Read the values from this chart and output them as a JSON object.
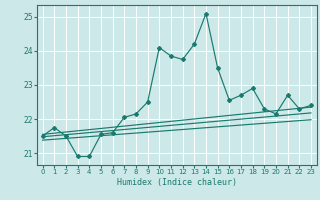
{
  "xlabel": "Humidex (Indice chaleur)",
  "bg_color": "#cde8e8",
  "grid_color": "#ffffff",
  "line_color": "#1a7a6e",
  "xlim": [
    -0.5,
    23.5
  ],
  "ylim": [
    20.65,
    25.35
  ],
  "xticks": [
    0,
    1,
    2,
    3,
    4,
    5,
    6,
    7,
    8,
    9,
    10,
    11,
    12,
    13,
    14,
    15,
    16,
    17,
    18,
    19,
    20,
    21,
    22,
    23
  ],
  "yticks": [
    21,
    22,
    23,
    24,
    25
  ],
  "main_x": [
    0,
    1,
    2,
    3,
    4,
    5,
    6,
    7,
    8,
    9,
    10,
    11,
    12,
    13,
    14,
    15,
    16,
    17,
    18,
    19,
    20,
    21,
    22,
    23
  ],
  "main_y": [
    21.5,
    21.75,
    21.5,
    20.9,
    20.9,
    21.55,
    21.6,
    22.05,
    22.15,
    22.5,
    24.1,
    23.85,
    23.75,
    24.2,
    25.1,
    23.5,
    22.55,
    22.7,
    22.9,
    22.3,
    22.15,
    22.7,
    22.3,
    22.4
  ],
  "line1_x": [
    0,
    23
  ],
  "line1_y": [
    21.55,
    22.35
  ],
  "line2_x": [
    0,
    23
  ],
  "line2_y": [
    21.48,
    22.18
  ],
  "line3_x": [
    0,
    23
  ],
  "line3_y": [
    21.38,
    21.98
  ]
}
